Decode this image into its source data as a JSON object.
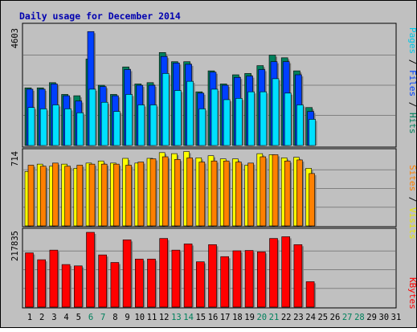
{
  "chart_data": {
    "type": "bar",
    "title": "Daily usage for December 2014",
    "categories": [
      "1",
      "2",
      "3",
      "4",
      "5",
      "6",
      "7",
      "8",
      "9",
      "10",
      "11",
      "12",
      "13",
      "14",
      "15",
      "16",
      "17",
      "18",
      "19",
      "20",
      "21",
      "22",
      "23",
      "24",
      "25",
      "26",
      "27",
      "28",
      "29",
      "30",
      "31"
    ],
    "weekend_days": [
      "6",
      "7",
      "13",
      "14",
      "20",
      "21",
      "27",
      "28"
    ],
    "panels": [
      {
        "name": "hits-files-pages",
        "ymax_label": "4603",
        "ymax": 4603,
        "series": [
          {
            "name": "Hits",
            "color": "#00805c",
            "values": [
              2200,
              2200,
              2400,
              1950,
              1900,
              3300,
              2300,
              1950,
              3000,
              2350,
              2400,
              3550,
              3200,
              3200,
              2050,
              2850,
              2350,
              2700,
              2750,
              3050,
              3450,
              3350,
              2850,
              1450,
              0,
              0,
              0,
              0,
              0,
              0,
              0
            ]
          },
          {
            "name": "Files",
            "color": "#0040ff",
            "values": [
              2150,
              2150,
              2350,
              1900,
              1700,
              4350,
              2250,
              1900,
              2900,
              2300,
              2300,
              3400,
              3150,
              3100,
              2000,
              2800,
              2300,
              2600,
              2650,
              2900,
              3200,
              3200,
              2700,
              1300,
              0,
              0,
              0,
              0,
              0,
              0,
              0
            ]
          },
          {
            "name": "Pages",
            "color": "#00e0ff",
            "values": [
              1450,
              1400,
              1550,
              1400,
              1250,
              2150,
              1650,
              1300,
              1950,
              1550,
              1550,
              2750,
              2100,
              2450,
              1400,
              2150,
              1750,
              1800,
              2050,
              2050,
              2550,
              2000,
              1550,
              1000,
              0,
              0,
              0,
              0,
              0,
              0,
              0
            ]
          }
        ]
      },
      {
        "name": "visits-sites",
        "ymax_label": "714",
        "ymax": 714,
        "series": [
          {
            "name": "Visits",
            "color": "#ffff00",
            "values": [
              520,
              590,
              570,
              590,
              550,
              600,
              620,
              600,
              645,
              600,
              645,
              700,
              690,
              710,
              650,
              670,
              640,
              640,
              580,
              690,
              680,
              650,
              655,
              550,
              0,
              0,
              0,
              0,
              0,
              0,
              0
            ]
          },
          {
            "name": "Sites",
            "color": "#ff8000",
            "values": [
              580,
              570,
              600,
              570,
              580,
              590,
              590,
              590,
              580,
              610,
              640,
              660,
              635,
              650,
              610,
              620,
              620,
              610,
              600,
              660,
              680,
              620,
              630,
              500,
              0,
              0,
              0,
              0,
              0,
              0,
              0
            ]
          }
        ]
      },
      {
        "name": "kbytes",
        "ymax_label": "217835",
        "ymax": 217835,
        "series": [
          {
            "name": "KBytes",
            "color": "#ff0000",
            "values": [
              158000,
              138000,
              166000,
              124000,
              120000,
              217835,
              152000,
              130000,
              196000,
              140000,
              140000,
              200000,
              166000,
              184000,
              132000,
              182000,
              147000,
              164000,
              165000,
              161000,
              200000,
              205000,
              182000,
              74000,
              0,
              0,
              0,
              0,
              0,
              0,
              0
            ]
          }
        ]
      }
    ],
    "grid": true,
    "legend": "right-vertical"
  }
}
